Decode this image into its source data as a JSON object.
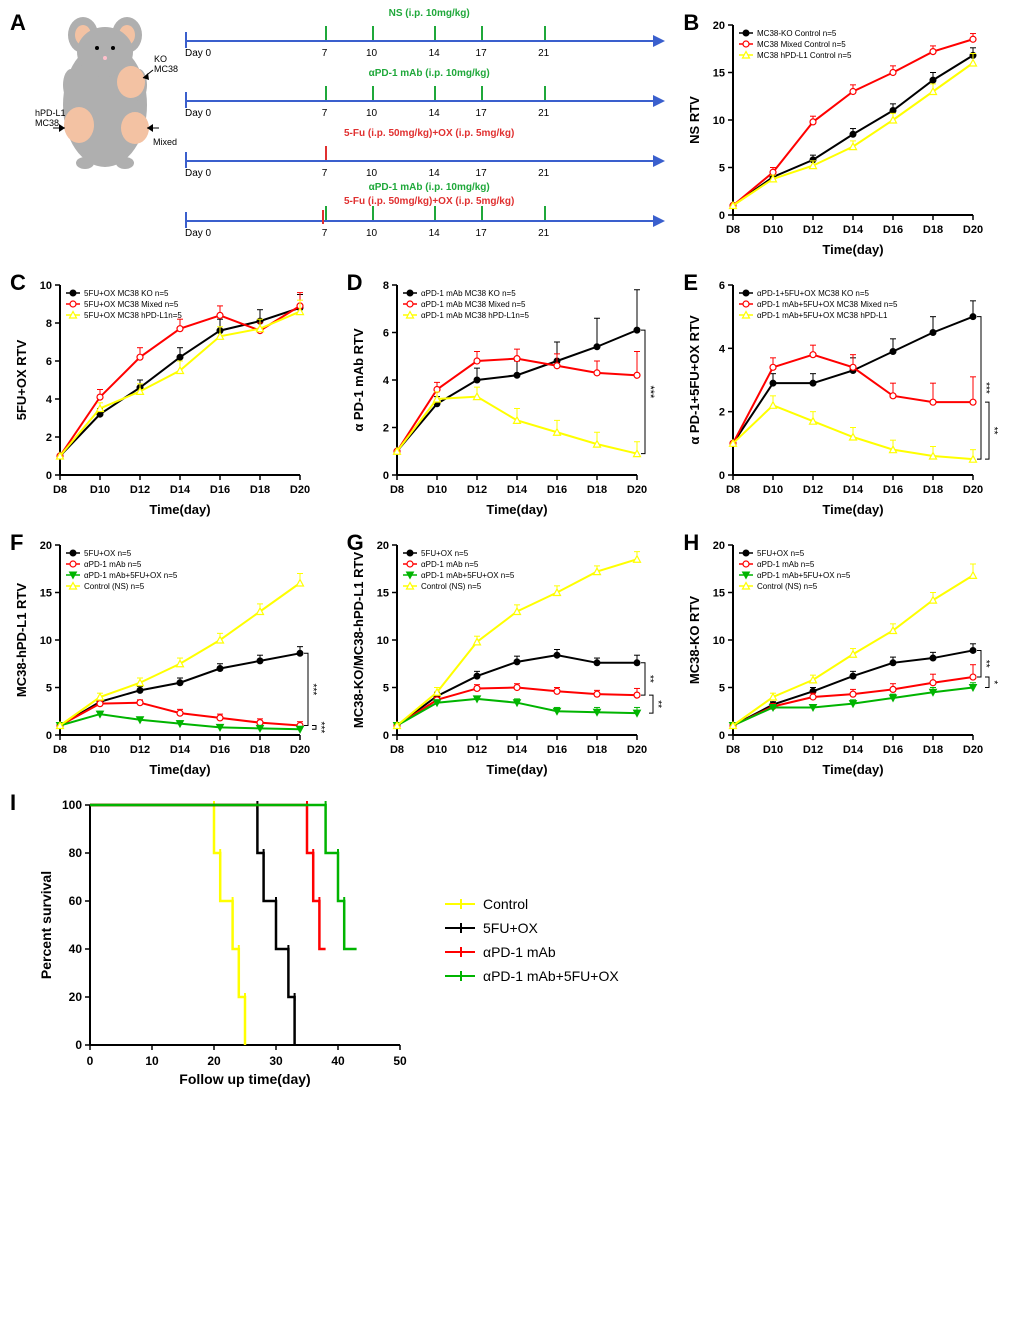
{
  "colors": {
    "black": "#000000",
    "red": "#ff0000",
    "yellow": "#ffff00",
    "green": "#00b400",
    "blue_arrow": "#3a5fcd",
    "green_tick": "#1fa83a",
    "red_tick": "#e03030",
    "mouse_body": "#afafaf",
    "tumor": "#f3c2a3",
    "axis": "#000000"
  },
  "panelA": {
    "label": "A",
    "mouse_labels": {
      "ko": "KO\nMC38",
      "mixed": "Mixed",
      "hpdl1": "hPD-L1\nMC38"
    },
    "timelines": [
      {
        "label": "NS (i.p. 10mg/kg)",
        "label_color": "#1fa83a",
        "ticks": [
          7,
          10,
          14,
          17,
          21
        ],
        "tick_color": "#1fa83a"
      },
      {
        "label": "αPD-1 mAb (i.p. 10mg/kg)",
        "label_color": "#1fa83a",
        "ticks": [
          7,
          10,
          14,
          17,
          21
        ],
        "tick_color": "#1fa83a"
      },
      {
        "label": "5-Fu (i.p. 50mg/kg)+OX (i.p. 5mg/kg)",
        "label_color": "#e03030",
        "ticks": [
          7
        ],
        "tick_color": "#e03030",
        "all_days": [
          7,
          10,
          14,
          17,
          21
        ]
      },
      {
        "label_top": "αPD-1 mAb (i.p. 10mg/kg)",
        "label_top_color": "#1fa83a",
        "label_bot": "5-Fu (i.p. 50mg/kg)+OX (i.p. 5mg/kg)",
        "label_bot_color": "#e03030",
        "green_ticks": [
          7,
          10,
          14,
          17,
          21
        ],
        "red_ticks": [
          7
        ],
        "all_days": [
          7,
          10,
          14,
          17,
          21
        ]
      }
    ],
    "day0_label": "Day 0"
  },
  "lineChartCommon": {
    "x_categories": [
      "D8",
      "D10",
      "D12",
      "D14",
      "D16",
      "D18",
      "D20"
    ],
    "xlabel": "Time(day)",
    "axis_fontsize": 12,
    "tick_fontsize": 10,
    "legend_fontsize": 8
  },
  "panels": {
    "B": {
      "label": "B",
      "ylabel": "NS RTV",
      "ylim": [
        0,
        20
      ],
      "ytick_step": 5,
      "series": [
        {
          "name": "MC38-KO Control n=5",
          "color": "#000000",
          "marker": "circle-filled",
          "y": [
            1,
            4,
            5.8,
            8.5,
            11,
            14.2,
            16.8
          ],
          "err": [
            0,
            0.4,
            0.5,
            0.6,
            0.7,
            0.8,
            0.8
          ]
        },
        {
          "name": "MC38 Mixed Control n=5",
          "color": "#ff0000",
          "marker": "circle-open",
          "y": [
            1,
            4.5,
            9.8,
            13,
            15,
            17.2,
            18.5
          ],
          "err": [
            0,
            0.5,
            0.6,
            0.7,
            0.7,
            0.6,
            0.6
          ]
        },
        {
          "name": "MC38 hPD-L1 Control n=5",
          "color": "#ffff00",
          "marker": "triangle-open",
          "y": [
            1,
            3.8,
            5.2,
            7.2,
            10,
            13,
            16
          ],
          "err": [
            0,
            0.4,
            0.5,
            0.6,
            0.7,
            0.8,
            1.0
          ]
        }
      ]
    },
    "C": {
      "label": "C",
      "ylabel": "5FU+OX RTV",
      "ylim": [
        0,
        10
      ],
      "ytick_step": 2,
      "series": [
        {
          "name": "5FU+OX MC38 KO n=5",
          "color": "#000000",
          "marker": "circle-filled",
          "y": [
            1,
            3.2,
            4.6,
            6.2,
            7.6,
            8.1,
            8.8
          ],
          "err": [
            0,
            0.3,
            0.4,
            0.5,
            0.6,
            0.6,
            0.7
          ]
        },
        {
          "name": "5FU+OX MC38 Mixed n=5",
          "color": "#ff0000",
          "marker": "circle-open",
          "y": [
            1,
            4.1,
            6.2,
            7.7,
            8.4,
            7.6,
            8.9
          ],
          "err": [
            0,
            0.4,
            0.5,
            0.5,
            0.5,
            0.4,
            0.7
          ]
        },
        {
          "name": "5FU+OX MC38 hPD-L1n=5",
          "color": "#ffff00",
          "marker": "triangle-open",
          "y": [
            1,
            3.5,
            4.4,
            5.5,
            7.3,
            7.7,
            8.6
          ],
          "err": [
            0,
            0.3,
            0.4,
            0.5,
            0.5,
            0.5,
            0.6
          ]
        }
      ]
    },
    "D": {
      "label": "D",
      "ylabel": "α PD-1 mAb RTV",
      "ylim": [
        0,
        8
      ],
      "ytick_step": 2,
      "series": [
        {
          "name": "αPD-1 mAb MC38 KO n=5",
          "color": "#000000",
          "marker": "circle-filled",
          "y": [
            1,
            3,
            4,
            4.2,
            4.8,
            5.4,
            6.1
          ],
          "err": [
            0,
            0.3,
            0.5,
            0.6,
            0.8,
            1.2,
            1.7
          ]
        },
        {
          "name": "αPD-1 mAb MC38 Mixed n=5",
          "color": "#ff0000",
          "marker": "circle-open",
          "y": [
            1,
            3.6,
            4.8,
            4.9,
            4.6,
            4.3,
            4.2
          ],
          "err": [
            0,
            0.3,
            0.4,
            0.4,
            0.5,
            0.5,
            1.0
          ]
        },
        {
          "name": "αPD-1 mAb MC38 hPD-L1n=5",
          "color": "#ffff00",
          "marker": "triangle-open",
          "y": [
            1,
            3.2,
            3.3,
            2.3,
            1.8,
            1.3,
            0.9
          ],
          "err": [
            0,
            0.3,
            0.4,
            0.5,
            0.5,
            0.5,
            0.5
          ]
        }
      ],
      "sig": [
        {
          "group": [
            "#000000",
            "#ff0000",
            "#ffff00"
          ],
          "label": "***"
        }
      ]
    },
    "E": {
      "label": "E",
      "ylabel": "α PD-1+5FU+OX RTV",
      "ylim": [
        0,
        6
      ],
      "ytick_step": 2,
      "series": [
        {
          "name": "αPD-1+5FU+OX MC38 KO n=5",
          "color": "#000000",
          "marker": "circle-filled",
          "y": [
            1,
            2.9,
            2.9,
            3.3,
            3.9,
            4.5,
            5.0
          ],
          "err": [
            0,
            0.3,
            0.3,
            0.4,
            0.4,
            0.5,
            0.5
          ]
        },
        {
          "name": "αPD-1 mAb+5FU+OX MC38 Mixed n=5",
          "color": "#ff0000",
          "marker": "circle-open",
          "y": [
            1,
            3.4,
            3.8,
            3.4,
            2.5,
            2.3,
            2.3
          ],
          "err": [
            0,
            0.3,
            0.3,
            0.4,
            0.4,
            0.6,
            0.8
          ]
        },
        {
          "name": "αPD-1 mAb+5FU+OX MC38 hPD-L1",
          "color": "#ffff00",
          "marker": "triangle-open",
          "y": [
            1,
            2.2,
            1.7,
            1.2,
            0.8,
            0.6,
            0.5
          ],
          "err": [
            0,
            0.3,
            0.3,
            0.3,
            0.3,
            0.3,
            0.3
          ]
        }
      ],
      "sig": [
        {
          "pairs": [
            [
              "#000000",
              "#ffff00",
              "***"
            ],
            [
              "#ff0000",
              "#ffff00",
              "**"
            ]
          ]
        }
      ]
    },
    "F": {
      "label": "F",
      "ylabel": "MC38-hPD-L1 RTV",
      "ylim": [
        0,
        20
      ],
      "ytick_step": 5,
      "series": [
        {
          "name": "5FU+OX n=5",
          "color": "#000000",
          "marker": "circle-filled",
          "y": [
            1,
            3.5,
            4.7,
            5.5,
            7,
            7.8,
            8.6
          ],
          "err": [
            0,
            0.3,
            0.4,
            0.5,
            0.5,
            0.6,
            0.7
          ]
        },
        {
          "name": "αPD-1 mAb n=5",
          "color": "#ff0000",
          "marker": "circle-open",
          "y": [
            1,
            3.3,
            3.4,
            2.3,
            1.8,
            1.3,
            1.0
          ],
          "err": [
            0,
            0.3,
            0.3,
            0.4,
            0.4,
            0.4,
            0.4
          ]
        },
        {
          "name": "αPD-1 mAb+5FU+OX n=5",
          "color": "#00b400",
          "marker": "triangle-filled",
          "y": [
            1,
            2.2,
            1.6,
            1.2,
            0.8,
            0.7,
            0.6
          ],
          "err": [
            0,
            0.3,
            0.3,
            0.3,
            0.3,
            0.3,
            0.3
          ]
        },
        {
          "name": "Control (NS) n=5",
          "color": "#ffff00",
          "marker": "triangle-open",
          "y": [
            1,
            4.0,
            5.5,
            7.5,
            10,
            13,
            16
          ],
          "err": [
            0,
            0.4,
            0.5,
            0.6,
            0.7,
            0.8,
            1.0
          ]
        }
      ],
      "sig_stack": [
        "***",
        "***"
      ]
    },
    "G": {
      "label": "G",
      "ylabel": "MC38-KO/MC38-hPD-L1 RTV",
      "ylim": [
        0,
        20
      ],
      "ytick_step": 5,
      "series": [
        {
          "name": "5FU+OX n=5",
          "color": "#000000",
          "marker": "circle-filled",
          "y": [
            1,
            4.1,
            6.2,
            7.7,
            8.4,
            7.6,
            7.6
          ],
          "err": [
            0,
            0.4,
            0.5,
            0.6,
            0.6,
            0.5,
            0.8
          ]
        },
        {
          "name": "αPD-1 mAb n=5",
          "color": "#ff0000",
          "marker": "circle-open",
          "y": [
            1,
            3.7,
            4.9,
            5.0,
            4.6,
            4.3,
            4.2
          ],
          "err": [
            0,
            0.3,
            0.4,
            0.4,
            0.4,
            0.4,
            0.7
          ]
        },
        {
          "name": "αPD-1 mAb+5FU+OX n=5",
          "color": "#00b400",
          "marker": "triangle-filled",
          "y": [
            1,
            3.4,
            3.8,
            3.4,
            2.5,
            2.4,
            2.3
          ],
          "err": [
            0,
            0.3,
            0.3,
            0.4,
            0.4,
            0.5,
            0.6
          ]
        },
        {
          "name": "Control (NS) n=5",
          "color": "#ffff00",
          "marker": "triangle-open",
          "y": [
            1,
            4.5,
            9.8,
            13,
            15,
            17.2,
            18.5
          ],
          "err": [
            0,
            0.5,
            0.6,
            0.7,
            0.7,
            0.6,
            0.8
          ]
        }
      ],
      "sig_stack": [
        "**",
        "**"
      ]
    },
    "H": {
      "label": "H",
      "ylabel": "MC38-KO RTV",
      "ylim": [
        0,
        20
      ],
      "ytick_step": 5,
      "series": [
        {
          "name": "5FU+OX n=5",
          "color": "#000000",
          "marker": "circle-filled",
          "y": [
            1,
            3.2,
            4.6,
            6.2,
            7.6,
            8.1,
            8.9
          ],
          "err": [
            0,
            0.3,
            0.4,
            0.5,
            0.6,
            0.6,
            0.7
          ]
        },
        {
          "name": "αPD-1 mAb n=5",
          "color": "#ff0000",
          "marker": "circle-open",
          "y": [
            1,
            3.0,
            4.0,
            4.3,
            4.8,
            5.5,
            6.1
          ],
          "err": [
            0,
            0.3,
            0.4,
            0.5,
            0.6,
            0.9,
            1.3
          ]
        },
        {
          "name": "αPD-1 mAb+5FU+OX n=5",
          "color": "#00b400",
          "marker": "triangle-filled",
          "y": [
            1,
            2.9,
            2.9,
            3.3,
            3.9,
            4.5,
            5.0
          ],
          "err": [
            0,
            0.3,
            0.3,
            0.4,
            0.4,
            0.5,
            0.5
          ]
        },
        {
          "name": "Control (NS)  n=5",
          "color": "#ffff00",
          "marker": "triangle-open",
          "y": [
            1,
            4.0,
            5.8,
            8.5,
            11,
            14.2,
            16.8
          ],
          "err": [
            0,
            0.4,
            0.5,
            0.6,
            0.7,
            0.8,
            1.2
          ]
        }
      ],
      "sig_stack": [
        "**",
        "*"
      ]
    }
  },
  "panelI": {
    "label": "I",
    "xlabel": "Follow up time(day)",
    "ylabel": "Percent survival",
    "xlim": [
      0,
      50
    ],
    "xtick_step": 10,
    "ylim": [
      0,
      100
    ],
    "ytick_step": 20,
    "legend": [
      {
        "name": "Control",
        "color": "#ffff00"
      },
      {
        "name": "5FU+OX",
        "color": "#000000"
      },
      {
        "name": "αPD-1 mAb",
        "color": "#ff0000"
      },
      {
        "name": "αPD-1 mAb+5FU+OX",
        "color": "#00b400"
      }
    ],
    "series": [
      {
        "color": "#ffff00",
        "steps": [
          [
            0,
            100
          ],
          [
            20,
            100
          ],
          [
            20,
            80
          ],
          [
            21,
            80
          ],
          [
            21,
            60
          ],
          [
            23,
            60
          ],
          [
            23,
            40
          ],
          [
            24,
            40
          ],
          [
            24,
            20
          ],
          [
            25,
            20
          ],
          [
            25,
            0
          ]
        ]
      },
      {
        "color": "#000000",
        "steps": [
          [
            0,
            100
          ],
          [
            27,
            100
          ],
          [
            27,
            80
          ],
          [
            28,
            80
          ],
          [
            28,
            60
          ],
          [
            30,
            60
          ],
          [
            30,
            40
          ],
          [
            32,
            40
          ],
          [
            32,
            20
          ],
          [
            33,
            20
          ],
          [
            33,
            0
          ]
        ]
      },
      {
        "color": "#ff0000",
        "steps": [
          [
            0,
            100
          ],
          [
            35,
            100
          ],
          [
            35,
            80
          ],
          [
            36,
            80
          ],
          [
            36,
            60
          ],
          [
            37,
            60
          ],
          [
            37,
            40
          ],
          [
            38,
            40
          ]
        ]
      },
      {
        "color": "#00b400",
        "steps": [
          [
            0,
            100
          ],
          [
            38,
            100
          ],
          [
            38,
            80
          ],
          [
            40,
            80
          ],
          [
            40,
            60
          ],
          [
            41,
            60
          ],
          [
            41,
            40
          ],
          [
            43,
            40
          ]
        ]
      }
    ]
  }
}
